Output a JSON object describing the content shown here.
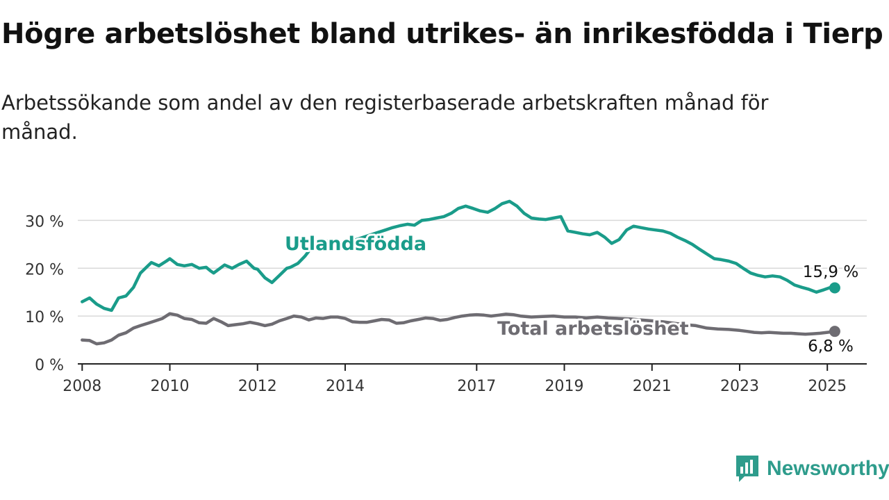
{
  "title": "Högre arbetslöshet bland utrikes- än inrikesfödda i Tierp",
  "subtitle": "Arbetssökande som andel av den registerbaserade arbetskraften månad för månad.",
  "brand": {
    "name": "Newsworthy",
    "color": "#2e9c8c"
  },
  "chart_data": {
    "type": "line",
    "title": "Högre arbetslöshet bland utrikes- än inrikesfödda i Tierp",
    "subtitle": "Arbetssökande som andel av den registerbaserade arbetskraften månad för månad.",
    "xlabel": "",
    "ylabel": "",
    "x_unit": "year",
    "xlim": [
      2007.9,
      2025.9
    ],
    "ylim": [
      0,
      35
    ],
    "x_ticks": [
      2008,
      2010,
      2012,
      2014,
      2017,
      2019,
      2021,
      2023,
      2025
    ],
    "y_ticks": [
      0,
      10,
      20,
      30
    ],
    "y_tick_labels": [
      "0 %",
      "10 %",
      "20 %",
      "30 %"
    ],
    "grid": true,
    "legend": "inline-labels",
    "series": [
      {
        "name": "Utlandsfödda",
        "color": "#1a9c8a",
        "end_label": "15,9 %",
        "x": [
          2008.0,
          2008.17,
          2008.33,
          2008.5,
          2008.67,
          2008.83,
          2008.92,
          2009.0,
          2009.17,
          2009.33,
          2009.5,
          2009.58,
          2009.75,
          2009.92,
          2010.0,
          2010.17,
          2010.33,
          2010.5,
          2010.67,
          2010.83,
          2010.92,
          2011.0,
          2011.25,
          2011.42,
          2011.58,
          2011.75,
          2011.92,
          2012.0,
          2012.17,
          2012.33,
          2012.5,
          2012.67,
          2012.75,
          2012.92,
          2013.08,
          2013.25,
          2013.5,
          2013.75,
          2013.92,
          2014.08,
          2014.25,
          2014.42,
          2014.58,
          2014.75,
          2014.92,
          2015.08,
          2015.25,
          2015.42,
          2015.58,
          2015.75,
          2015.92,
          2016.08,
          2016.25,
          2016.42,
          2016.58,
          2016.75,
          2016.92,
          2017.08,
          2017.25,
          2017.42,
          2017.58,
          2017.75,
          2017.92,
          2018.08,
          2018.25,
          2018.42,
          2018.58,
          2018.75,
          2018.92,
          2019.08,
          2019.25,
          2019.42,
          2019.58,
          2019.75,
          2019.92,
          2020.08,
          2020.25,
          2020.42,
          2020.58,
          2020.75,
          2020.92,
          2021.08,
          2021.25,
          2021.42,
          2021.58,
          2021.75,
          2021.92,
          2022.08,
          2022.25,
          2022.42,
          2022.58,
          2022.75,
          2022.92,
          2023.08,
          2023.25,
          2023.42,
          2023.58,
          2023.75,
          2023.92,
          2024.08,
          2024.25,
          2024.42,
          2024.58,
          2024.75,
          2024.92,
          2025.08,
          2025.17
        ],
        "y": [
          13.0,
          13.8,
          12.5,
          11.6,
          11.2,
          13.8,
          14.0,
          14.2,
          16.0,
          19.0,
          20.5,
          21.2,
          20.5,
          21.5,
          22.0,
          20.8,
          20.5,
          20.8,
          20.0,
          20.2,
          19.5,
          19.0,
          20.7,
          20.0,
          20.8,
          21.5,
          20.0,
          19.8,
          18.0,
          17.0,
          18.5,
          20.0,
          20.2,
          21.0,
          22.5,
          24.5,
          26.0,
          25.0,
          24.5,
          25.5,
          26.0,
          26.5,
          27.0,
          27.5,
          28.0,
          28.5,
          28.9,
          29.2,
          29.0,
          30.0,
          30.2,
          30.5,
          30.8,
          31.5,
          32.5,
          33.0,
          32.5,
          32.0,
          31.7,
          32.5,
          33.5,
          34.0,
          33.0,
          31.5,
          30.5,
          30.3,
          30.2,
          30.5,
          30.8,
          27.8,
          27.5,
          27.2,
          27.0,
          27.5,
          26.5,
          25.2,
          26.0,
          28.0,
          28.8,
          28.5,
          28.2,
          28.0,
          27.8,
          27.3,
          26.5,
          25.8,
          25.0,
          24.0,
          23.0,
          22.0,
          21.8,
          21.5,
          21.0,
          20.0,
          19.0,
          18.5,
          18.2,
          18.4,
          18.2,
          17.5,
          16.5,
          16.0,
          15.6,
          15.0,
          15.5,
          16.0,
          15.9
        ]
      },
      {
        "name": "Total arbetslöshet",
        "color": "#6e6c72",
        "end_label": "6,8 %",
        "x": [
          2008.0,
          2008.17,
          2008.33,
          2008.5,
          2008.67,
          2008.83,
          2009.0,
          2009.17,
          2009.33,
          2009.5,
          2009.67,
          2009.83,
          2010.0,
          2010.17,
          2010.33,
          2010.5,
          2010.67,
          2010.83,
          2011.0,
          2011.17,
          2011.33,
          2011.5,
          2011.67,
          2011.83,
          2012.0,
          2012.17,
          2012.33,
          2012.5,
          2012.67,
          2012.83,
          2013.0,
          2013.17,
          2013.33,
          2013.5,
          2013.67,
          2013.83,
          2014.0,
          2014.17,
          2014.33,
          2014.5,
          2014.67,
          2014.83,
          2015.0,
          2015.17,
          2015.33,
          2015.5,
          2015.67,
          2015.83,
          2016.0,
          2016.17,
          2016.33,
          2016.5,
          2016.67,
          2016.83,
          2017.0,
          2017.17,
          2017.33,
          2017.5,
          2017.67,
          2017.83,
          2018.0,
          2018.25,
          2018.5,
          2018.75,
          2019.0,
          2019.25,
          2019.5,
          2019.75,
          2020.0,
          2020.25,
          2020.5,
          2020.75,
          2021.0,
          2021.25,
          2021.5,
          2021.75,
          2022.0,
          2022.25,
          2022.5,
          2022.75,
          2023.0,
          2023.17,
          2023.33,
          2023.5,
          2023.67,
          2023.83,
          2024.0,
          2024.17,
          2024.33,
          2024.5,
          2024.67,
          2024.83,
          2025.0,
          2025.17
        ],
        "y": [
          5.0,
          4.9,
          4.2,
          4.4,
          5.0,
          6.0,
          6.5,
          7.5,
          8.0,
          8.5,
          9.0,
          9.5,
          10.5,
          10.2,
          9.5,
          9.3,
          8.6,
          8.5,
          9.5,
          8.8,
          8.0,
          8.2,
          8.4,
          8.7,
          8.4,
          8.0,
          8.3,
          9.0,
          9.5,
          10.0,
          9.8,
          9.2,
          9.6,
          9.5,
          9.8,
          9.8,
          9.5,
          8.8,
          8.7,
          8.7,
          9.0,
          9.3,
          9.2,
          8.5,
          8.6,
          9.0,
          9.3,
          9.6,
          9.5,
          9.1,
          9.3,
          9.7,
          10.0,
          10.2,
          10.3,
          10.2,
          10.0,
          10.2,
          10.4,
          10.3,
          10.0,
          9.8,
          9.9,
          10.0,
          9.8,
          9.8,
          9.6,
          9.8,
          9.6,
          9.5,
          9.4,
          9.2,
          9.0,
          8.8,
          8.5,
          8.2,
          8.0,
          7.5,
          7.3,
          7.2,
          7.0,
          6.8,
          6.6,
          6.5,
          6.6,
          6.5,
          6.4,
          6.4,
          6.3,
          6.2,
          6.3,
          6.4,
          6.6,
          6.8
        ]
      }
    ]
  }
}
